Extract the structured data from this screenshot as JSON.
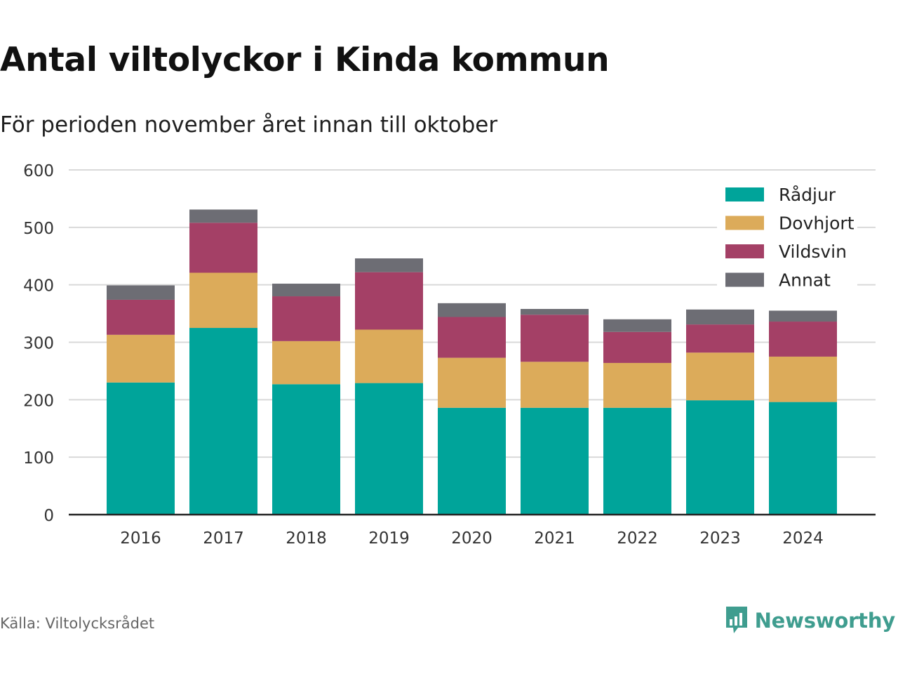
{
  "header": {
    "title": "Antal viltolyckor i Kinda kommun",
    "subtitle": "För perioden november året innan till oktober"
  },
  "footer": {
    "source": "Källa: Viltolycksrådet",
    "brand": "Newsworthy",
    "brand_icon": "newsworthy-logo-icon",
    "brand_color": "#3f9d8f"
  },
  "chart_data": {
    "type": "bar",
    "stacked": true,
    "categories": [
      "2016",
      "2017",
      "2018",
      "2019",
      "2020",
      "2021",
      "2022",
      "2023",
      "2024"
    ],
    "series": [
      {
        "name": "Rådjur",
        "color": "#00a49a",
        "values": [
          230,
          325,
          227,
          229,
          186,
          186,
          186,
          199,
          196
        ]
      },
      {
        "name": "Dovhjort",
        "color": "#dcab5a",
        "values": [
          83,
          96,
          75,
          93,
          87,
          80,
          78,
          83,
          79
        ]
      },
      {
        "name": "Vildsvin",
        "color": "#a44066",
        "values": [
          61,
          87,
          78,
          100,
          71,
          82,
          54,
          49,
          61
        ]
      },
      {
        "name": "Annat",
        "color": "#6d6d74",
        "values": [
          25,
          23,
          22,
          24,
          24,
          10,
          22,
          26,
          19
        ]
      }
    ],
    "ylim": [
      0,
      600
    ],
    "yticks": [
      0,
      100,
      200,
      300,
      400,
      500,
      600
    ],
    "xlabel": "",
    "ylabel": "",
    "grid": true,
    "legend_position": "top-right"
  }
}
